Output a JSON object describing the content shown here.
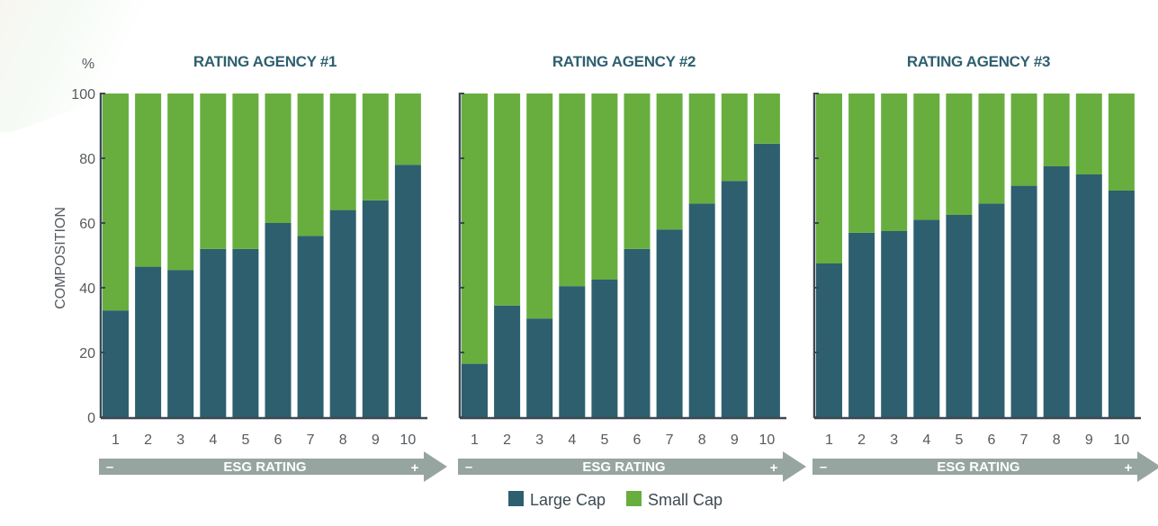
{
  "chart_data": {
    "type": "bar",
    "stacked": true,
    "y_unit_label": "%",
    "ylabel": "COMPOSITION",
    "ylim": [
      0,
      100
    ],
    "yticks": [
      0,
      20,
      40,
      60,
      80,
      100
    ],
    "categories": [
      "1",
      "2",
      "3",
      "4",
      "5",
      "6",
      "7",
      "8",
      "9",
      "10"
    ],
    "xlabel": "ESG RATING",
    "x_arrow_low": "–",
    "x_arrow_high": "+",
    "colors": {
      "Large Cap": "#2e5f6e",
      "Small Cap": "#67ae3f",
      "axis": "#3d4852",
      "arrow": "#97a5a1"
    },
    "legend": {
      "position": "bottom-center",
      "entries": [
        "Large Cap",
        "Small Cap"
      ]
    },
    "panels": [
      {
        "title": "RATING AGENCY #1",
        "series": [
          {
            "name": "Large Cap",
            "values": [
              33,
              46.5,
              45.5,
              52,
              52,
              60,
              56,
              64,
              67,
              78
            ]
          },
          {
            "name": "Small Cap",
            "values": [
              67,
              53.5,
              54.5,
              48,
              48,
              40,
              44,
              36,
              33,
              22
            ]
          }
        ]
      },
      {
        "title": "RATING AGENCY #2",
        "series": [
          {
            "name": "Large Cap",
            "values": [
              16.5,
              34.5,
              30.5,
              40.5,
              42.5,
              52,
              58,
              66,
              73,
              84.5
            ]
          },
          {
            "name": "Small Cap",
            "values": [
              83.5,
              65.5,
              69.5,
              59.5,
              57.5,
              48,
              42,
              34,
              27,
              15.5
            ]
          }
        ]
      },
      {
        "title": "RATING AGENCY #3",
        "series": [
          {
            "name": "Large Cap",
            "values": [
              47.5,
              57,
              57.5,
              61,
              62.5,
              66,
              71.5,
              77.5,
              75,
              70
            ]
          },
          {
            "name": "Small Cap",
            "values": [
              52.5,
              43,
              42.5,
              39,
              37.5,
              34,
              28.5,
              22.5,
              25,
              30
            ]
          }
        ]
      }
    ]
  }
}
